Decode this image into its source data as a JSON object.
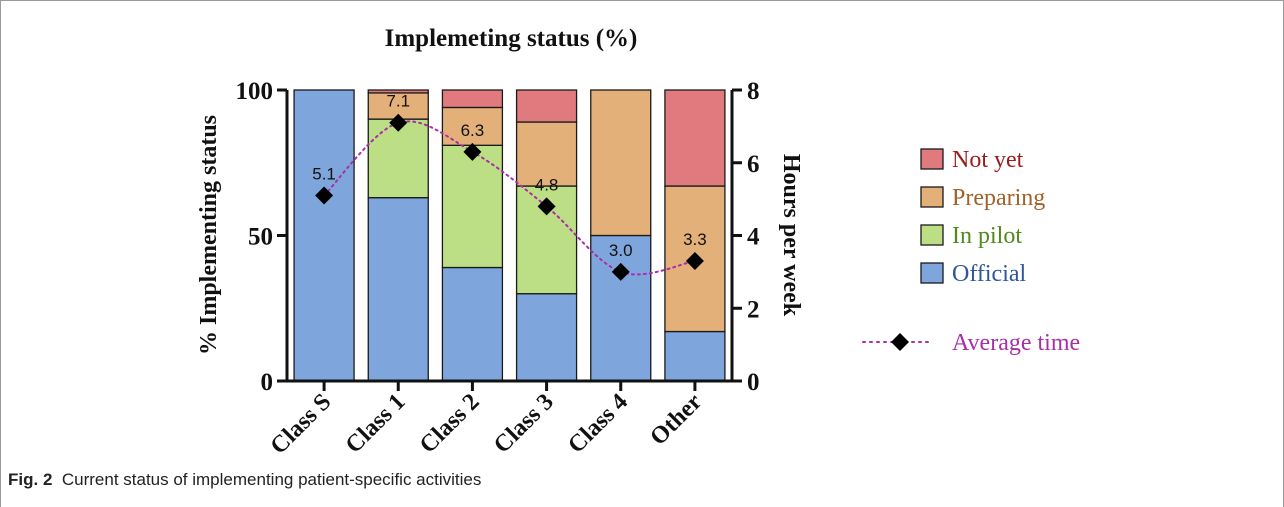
{
  "caption": {
    "label": "Fig. 2",
    "text": "Current status of implementing patient-specific activities"
  },
  "chart_data": {
    "type": "bar",
    "stacked": true,
    "title": "Implemeting status (%)",
    "ylabel": "% Implementing status",
    "y2label": "Hours per week",
    "ylim": [
      0,
      100
    ],
    "y2lim": [
      0,
      8
    ],
    "yticks": [
      "0",
      "50",
      "100"
    ],
    "y2ticks": [
      "0",
      "2",
      "4",
      "6",
      "8"
    ],
    "categories": [
      "Class S",
      "Class 1",
      "Class 2",
      "Class 3",
      "Class 4",
      "Other"
    ],
    "series": [
      {
        "name": "Official",
        "color": "#7fa6dc",
        "values": [
          100,
          63,
          39,
          30,
          50,
          17
        ]
      },
      {
        "name": "In pilot",
        "color": "#bcdf85",
        "values": [
          0,
          27,
          42,
          37,
          0,
          0
        ]
      },
      {
        "name": "Preparing",
        "color": "#e4b07a",
        "values": [
          0,
          9,
          13,
          22,
          50,
          50
        ]
      },
      {
        "name": "Not yet",
        "color": "#e17a7e",
        "values": [
          0,
          1,
          6,
          11,
          0,
          33
        ]
      }
    ],
    "line_series": {
      "name": "Average time",
      "color": "#a92ea8",
      "axis": "right",
      "values": [
        5.1,
        7.1,
        6.3,
        4.8,
        3.0,
        3.3
      ],
      "labels": [
        "5.1",
        "7.1",
        "6.3",
        "4.8",
        "3.0",
        "3.3"
      ]
    },
    "legend": {
      "position": "right",
      "items": [
        {
          "name": "Not yet",
          "color": "#e17a7e",
          "text_color": "#9b1c1c"
        },
        {
          "name": "Preparing",
          "color": "#e4b07a",
          "text_color": "#a0622a"
        },
        {
          "name": "In pilot",
          "color": "#bcdf85",
          "text_color": "#4f8a1a"
        },
        {
          "name": "Official",
          "color": "#7fa6dc",
          "text_color": "#2d55a0"
        }
      ],
      "line_item": {
        "name": "Average time",
        "text_color": "#a92ea8"
      }
    },
    "grid": false
  }
}
